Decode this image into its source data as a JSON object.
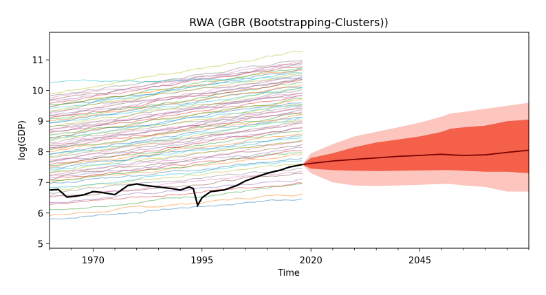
{
  "chart_data": {
    "type": "line",
    "title": "RWA (GBR (Bootstrapping-Clusters))",
    "xlabel": "Time",
    "ylabel": "log(GDP)",
    "xlim": [
      1960,
      2070
    ],
    "ylim": [
      4.85,
      11.9
    ],
    "x_ticks": [
      1970,
      1995,
      2020,
      2045
    ],
    "y_ticks": [
      5,
      6,
      7,
      8,
      9,
      10,
      11
    ],
    "grid": false,
    "legend": "none",
    "colors": {
      "focus_series": "#000000",
      "forecast_median": "#7a0000",
      "band_inner": "#f5604a",
      "band_outer": "#fcc5bd",
      "background_series_palette": [
        "#1f77b4",
        "#ff7f0e",
        "#2ca02c",
        "#d62728",
        "#9467bd",
        "#8c564b",
        "#e377c2",
        "#7f7f7f",
        "#bcbd22",
        "#17becf"
      ]
    },
    "focus_series": {
      "x": [
        1960,
        1962,
        1964,
        1966,
        1968,
        1970,
        1972,
        1975,
        1978,
        1980,
        1982,
        1985,
        1988,
        1990,
        1992,
        1993,
        1994,
        1995,
        1997,
        2000,
        2003,
        2005,
        2008,
        2010,
        2013,
        2015,
        2018
      ],
      "y": [
        6.75,
        6.77,
        6.52,
        6.55,
        6.6,
        6.7,
        6.67,
        6.6,
        6.9,
        6.95,
        6.9,
        6.85,
        6.8,
        6.75,
        6.85,
        6.8,
        6.25,
        6.5,
        6.7,
        6.75,
        6.9,
        7.05,
        7.2,
        7.3,
        7.4,
        7.5,
        7.58
      ]
    },
    "forecast": {
      "x": [
        2018,
        2020,
        2025,
        2030,
        2035,
        2040,
        2045,
        2050,
        2052,
        2055,
        2060,
        2065,
        2070
      ],
      "median": [
        7.58,
        7.62,
        7.7,
        7.75,
        7.8,
        7.85,
        7.88,
        7.92,
        7.9,
        7.88,
        7.9,
        7.98,
        8.05
      ],
      "inner_lower": [
        7.58,
        7.45,
        7.4,
        7.38,
        7.37,
        7.38,
        7.39,
        7.4,
        7.4,
        7.38,
        7.35,
        7.35,
        7.3
      ],
      "inner_upper": [
        7.58,
        7.8,
        7.95,
        8.15,
        8.3,
        8.4,
        8.5,
        8.65,
        8.75,
        8.8,
        8.85,
        9.0,
        9.05
      ],
      "outer_lower": [
        7.58,
        7.3,
        7.0,
        6.9,
        6.88,
        6.9,
        6.92,
        6.95,
        6.95,
        6.9,
        6.85,
        6.7,
        6.7
      ],
      "outer_upper": [
        7.58,
        7.95,
        8.25,
        8.5,
        8.65,
        8.8,
        8.95,
        9.15,
        9.25,
        9.3,
        9.4,
        9.5,
        9.6
      ]
    },
    "background_series": {
      "x_start": 1960,
      "x_end": 2018,
      "start_values": [
        5.8,
        5.9,
        6.1,
        6.25,
        6.35,
        6.5,
        6.55,
        6.65,
        6.75,
        6.85,
        6.95,
        7.0,
        7.05,
        7.1,
        7.15,
        7.2,
        7.25,
        7.3,
        7.35,
        7.4,
        7.45,
        7.5,
        7.55,
        7.6,
        7.65,
        7.7,
        7.75,
        7.8,
        7.85,
        7.9,
        7.95,
        8.0,
        8.05,
        8.1,
        8.15,
        8.2,
        8.25,
        8.3,
        8.35,
        8.4,
        8.45,
        8.5,
        8.55,
        8.6,
        8.65,
        8.7,
        8.75,
        8.8,
        8.85,
        8.9,
        8.95,
        9.0,
        9.05,
        9.1,
        9.15,
        9.2,
        9.25,
        9.3,
        9.35,
        9.4,
        9.45,
        9.5,
        9.55,
        9.6,
        9.65,
        9.7,
        9.75,
        9.8,
        9.9,
        10.25
      ],
      "end_values": [
        6.5,
        6.65,
        6.9,
        7.0,
        7.1,
        7.3,
        7.4,
        7.5,
        7.6,
        7.7,
        7.8,
        7.9,
        8.0,
        8.0,
        8.1,
        8.2,
        8.3,
        8.35,
        8.4,
        8.5,
        8.55,
        8.6,
        8.7,
        8.75,
        8.8,
        8.9,
        8.95,
        9.0,
        9.05,
        9.1,
        9.15,
        9.2,
        9.25,
        9.3,
        9.35,
        9.4,
        9.45,
        9.5,
        9.55,
        9.6,
        9.65,
        9.7,
        9.75,
        9.8,
        9.85,
        9.9,
        9.95,
        10.0,
        10.05,
        10.1,
        10.15,
        10.2,
        10.25,
        10.3,
        10.35,
        10.4,
        10.45,
        10.5,
        10.55,
        10.6,
        10.65,
        10.7,
        10.75,
        10.8,
        10.85,
        10.9,
        10.95,
        11.0,
        11.3,
        10.45
      ]
    }
  }
}
